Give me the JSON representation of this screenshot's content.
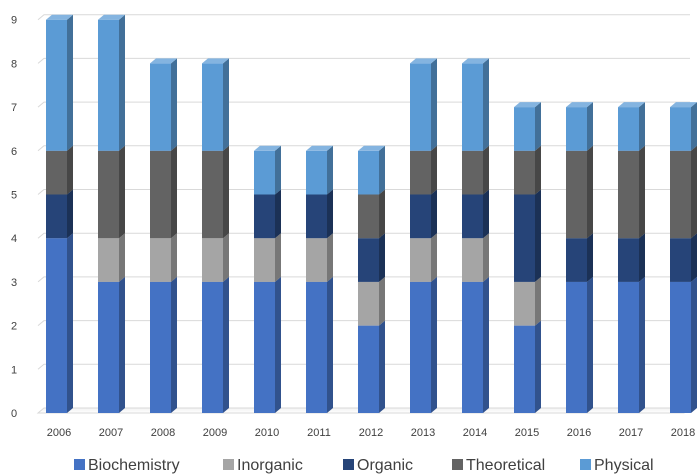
{
  "chart_data": {
    "type": "bar",
    "stacked": true,
    "style": "3d-column",
    "categories": [
      "2006",
      "2007",
      "2008",
      "2009",
      "2010",
      "2011",
      "2012",
      "2013",
      "2014",
      "2015",
      "2016",
      "2017",
      "2018"
    ],
    "series": [
      {
        "name": "Biochemistry",
        "color": "#4472c4",
        "values": [
          4,
          3,
          3,
          3,
          3,
          3,
          2,
          3,
          3,
          2,
          3,
          3,
          3
        ]
      },
      {
        "name": "Inorganic",
        "color": "#a5a5a5",
        "values": [
          0,
          1,
          1,
          1,
          1,
          1,
          1,
          1,
          1,
          1,
          0,
          0,
          0
        ]
      },
      {
        "name": "Organic",
        "color": "#264478",
        "values": [
          1,
          0,
          0,
          0,
          1,
          1,
          1,
          1,
          1,
          2,
          1,
          1,
          1
        ]
      },
      {
        "name": "Theoretical",
        "color": "#636363",
        "values": [
          1,
          2,
          2,
          2,
          0,
          0,
          1,
          1,
          1,
          1,
          2,
          2,
          2
        ]
      },
      {
        "name": "Physical",
        "color": "#5b9bd5",
        "values": [
          3,
          3,
          2,
          2,
          1,
          1,
          1,
          2,
          2,
          1,
          1,
          1,
          1
        ]
      }
    ],
    "ylim": [
      0,
      9
    ],
    "yticks": [
      "0",
      "1",
      "2",
      "3",
      "4",
      "5",
      "6",
      "7",
      "8",
      "9"
    ],
    "grid": true,
    "legend_position": "bottom",
    "title": "",
    "xlabel": "",
    "ylabel": ""
  }
}
